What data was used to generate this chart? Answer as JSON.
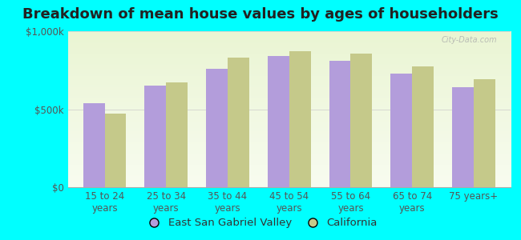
{
  "title": "Breakdown of mean house values by ages of householders",
  "categories": [
    "15 to 24\nyears",
    "25 to 34\nyears",
    "35 to 44\nyears",
    "45 to 54\nyears",
    "55 to 64\nyears",
    "65 to 74\nyears",
    "75 years+"
  ],
  "esgv_values": [
    540000,
    650000,
    760000,
    840000,
    810000,
    730000,
    640000
  ],
  "ca_values": [
    470000,
    670000,
    830000,
    870000,
    855000,
    775000,
    690000
  ],
  "esgv_color": "#b39ddb",
  "ca_color": "#c5c98a",
  "background_color": "#00ffff",
  "ylim": [
    0,
    1000000
  ],
  "yticks": [
    0,
    500000,
    1000000
  ],
  "ytick_labels": [
    "$0",
    "$500k",
    "$1,000k"
  ],
  "legend_esgv": "East San Gabriel Valley",
  "legend_ca": "California",
  "bar_width": 0.35,
  "title_fontsize": 13,
  "tick_fontsize": 8.5,
  "legend_fontsize": 9.5,
  "watermark": "City-Data.com"
}
